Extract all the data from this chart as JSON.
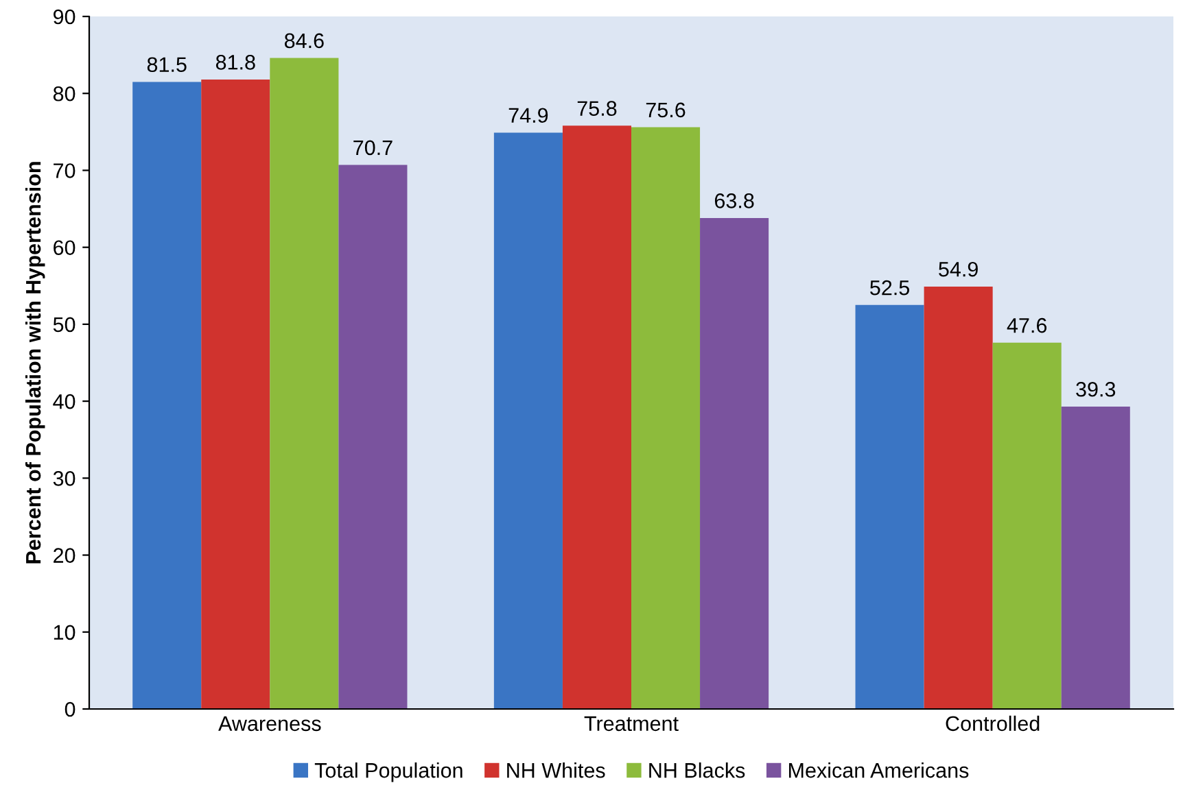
{
  "chart_data": {
    "type": "bar",
    "ylabel": "Percent of Population with Hypertension",
    "categories": [
      "Awareness",
      "Treatment",
      "Controlled"
    ],
    "series": [
      {
        "name": "Total Population",
        "color": "#3a75c4",
        "values": [
          81.5,
          74.9,
          52.5
        ]
      },
      {
        "name": "NH Whites",
        "color": "#d0332e",
        "values": [
          81.8,
          75.8,
          54.9
        ]
      },
      {
        "name": "NH Blacks",
        "color": "#8dbb3c",
        "values": [
          84.6,
          75.6,
          47.6
        ]
      },
      {
        "name": "Mexican Americans",
        "color": "#7a539e",
        "values": [
          70.7,
          63.8,
          39.3
        ]
      }
    ],
    "ylim": [
      0,
      90
    ],
    "yticks": [
      0,
      10,
      20,
      30,
      40,
      50,
      60,
      70,
      80,
      90
    ],
    "data_labels": true,
    "grid": false,
    "legend": "bottom"
  }
}
